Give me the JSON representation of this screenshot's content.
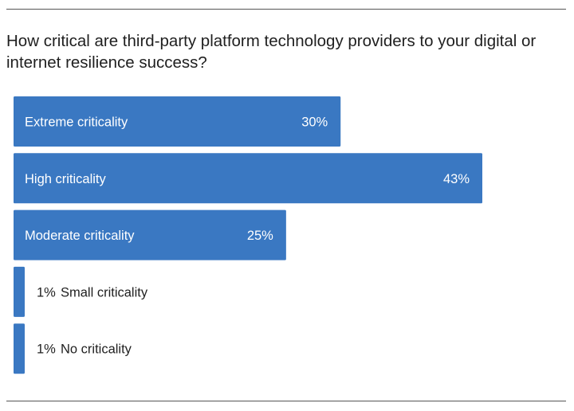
{
  "chart_data": {
    "type": "bar",
    "orientation": "horizontal",
    "title": "How critical are third-party platform technology providers to your digital or internet resilience success?",
    "categories": [
      "Extreme criticality",
      "High criticality",
      "Moderate criticality",
      "Small criticality",
      "No criticality"
    ],
    "values": [
      30,
      43,
      25,
      1,
      1
    ],
    "value_labels": [
      "30%",
      "43%",
      "25%",
      "1%",
      "1%"
    ],
    "unit": "%",
    "xlabel": "",
    "ylabel": "",
    "xlim": [
      0,
      43
    ],
    "grid": false,
    "bar_color": "#3a78c2"
  }
}
